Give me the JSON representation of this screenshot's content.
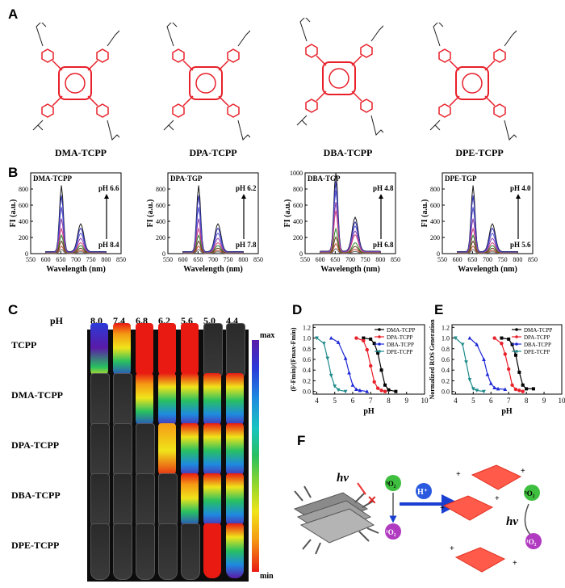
{
  "panels": {
    "A": "A",
    "B": "B",
    "C": "C",
    "D": "D",
    "E": "E",
    "F": "F"
  },
  "compounds": [
    "DMA-TCPP",
    "DPA-TCPP",
    "DBA-TCPP",
    "DPE-TCPP"
  ],
  "spectra": [
    {
      "title": "DMA-TCPP",
      "ph_top": "pH 6.6",
      "ph_bottom": "pH 8.4",
      "ymax": 1000,
      "yticks": [
        "0",
        "200",
        "400",
        "600",
        "800"
      ]
    },
    {
      "title": "DPA-TGP",
      "ph_top": "pH 6.2",
      "ph_bottom": "pH 7.8",
      "ymax": 1000,
      "yticks": [
        "0",
        "200",
        "400",
        "600",
        "800"
      ]
    },
    {
      "title": "DBA-TGP",
      "ph_top": "pH 4.8",
      "ph_bottom": "pH 6.8",
      "ymax": 1000,
      "yticks": [
        "0",
        "200",
        "400",
        "600",
        "800",
        "1000"
      ]
    },
    {
      "title": "DPE-TGP",
      "ph_top": "pH 4.0",
      "ph_bottom": "pH 5.6",
      "ymax": 1000,
      "yticks": [
        "0",
        "200",
        "400",
        "600",
        "800"
      ]
    }
  ],
  "spectra_axis": {
    "ylabel": "FI (a.u.)",
    "xlabel": "Wavelength (nm)",
    "xticks": [
      "550",
      "600",
      "650",
      "700",
      "750",
      "800",
      "850"
    ]
  },
  "imaging": {
    "ph_label": "pH",
    "ph_values": [
      "8.0",
      "7.4",
      "6.8",
      "6.2",
      "5.6",
      "5.0",
      "4.4"
    ],
    "rows": [
      "TCPP",
      "DMA-TCPP",
      "DPA-TCPP",
      "DBA-TCPP",
      "DPE-TCPP"
    ],
    "scale_max": "max",
    "scale_min": "min"
  },
  "chart_data": [
    {
      "type": "line",
      "panel": "D",
      "ylabel": "(F-Fmin)/(Fmax-Fmin)",
      "xlabel": "pH",
      "xlim": [
        3.8,
        10
      ],
      "ylim": [
        -0.05,
        1.25
      ],
      "xticks": [
        "4",
        "5",
        "6",
        "7",
        "8",
        "9",
        "10"
      ],
      "yticks": [
        "0.0",
        "0.2",
        "0.4",
        "0.6",
        "0.8",
        "1.0",
        "1.2"
      ],
      "legend_position": "top-right",
      "series": [
        {
          "name": "DMA-TCPP",
          "color": "#000000",
          "marker": "square",
          "x": [
            6.6,
            7.0,
            7.2,
            7.4,
            7.6,
            7.8,
            8.0,
            8.4
          ],
          "y": [
            1.0,
            0.98,
            0.9,
            0.72,
            0.4,
            0.12,
            0.03,
            0.0
          ]
        },
        {
          "name": "DPA-TCPP",
          "color": "#e8202a",
          "marker": "circle",
          "x": [
            6.2,
            6.6,
            6.8,
            7.0,
            7.2,
            7.4,
            7.6,
            7.8
          ],
          "y": [
            1.0,
            0.95,
            0.78,
            0.48,
            0.18,
            0.06,
            0.02,
            0.0
          ]
        },
        {
          "name": "DBA-TCPP",
          "color": "#1f2ad6",
          "marker": "triangle",
          "x": [
            4.8,
            5.2,
            5.6,
            5.8,
            6.0,
            6.2,
            6.4,
            6.8
          ],
          "y": [
            1.0,
            0.92,
            0.62,
            0.35,
            0.12,
            0.04,
            0.02,
            0.0
          ]
        },
        {
          "name": "DPE-TCPP",
          "color": "#1f8a8a",
          "marker": "tri-down",
          "x": [
            4.0,
            4.4,
            4.6,
            4.8,
            5.0,
            5.2,
            5.6
          ],
          "y": [
            1.0,
            0.9,
            0.62,
            0.3,
            0.1,
            0.03,
            0.0
          ]
        }
      ]
    },
    {
      "type": "line",
      "panel": "E",
      "ylabel": "Normalized ROS Generation",
      "xlabel": "pH",
      "xlim": [
        3.8,
        10
      ],
      "ylim": [
        -0.05,
        1.25
      ],
      "xticks": [
        "4",
        "5",
        "6",
        "7",
        "8",
        "9",
        "10"
      ],
      "yticks": [
        "0.0",
        "0.2",
        "0.4",
        "0.6",
        "0.8",
        "1.0",
        "1.2"
      ],
      "legend_position": "top-right",
      "series": [
        {
          "name": "DMA-TCPP",
          "color": "#000000",
          "marker": "square",
          "x": [
            6.6,
            7.0,
            7.2,
            7.4,
            7.6,
            7.8,
            8.0,
            8.4
          ],
          "y": [
            1.0,
            0.98,
            0.88,
            0.68,
            0.36,
            0.12,
            0.05,
            0.05
          ]
        },
        {
          "name": "DPA-TCPP",
          "color": "#e8202a",
          "marker": "circle",
          "x": [
            6.2,
            6.6,
            6.8,
            7.0,
            7.2,
            7.4,
            7.6,
            7.8
          ],
          "y": [
            1.0,
            0.9,
            0.7,
            0.42,
            0.12,
            0.04,
            0.02,
            0.0
          ]
        },
        {
          "name": "DBA-TCPP",
          "color": "#1f2ad6",
          "marker": "triangle",
          "x": [
            4.8,
            5.2,
            5.6,
            5.8,
            6.0,
            6.2,
            6.4,
            6.8
          ],
          "y": [
            1.0,
            0.88,
            0.6,
            0.32,
            0.15,
            0.07,
            0.05,
            0.04
          ]
        },
        {
          "name": "DPE-TCPP",
          "color": "#1f8a8a",
          "marker": "tri-down",
          "x": [
            4.0,
            4.4,
            4.6,
            4.8,
            5.0,
            5.2,
            5.6
          ],
          "y": [
            1.0,
            0.88,
            0.55,
            0.22,
            0.05,
            0.02,
            0.0
          ]
        }
      ]
    }
  ],
  "scheme": {
    "hv1": "hν",
    "hv2": "hν",
    "proton": "H⁺",
    "o2_triplet": "³O₂",
    "o2_singlet": "¹O₂"
  }
}
